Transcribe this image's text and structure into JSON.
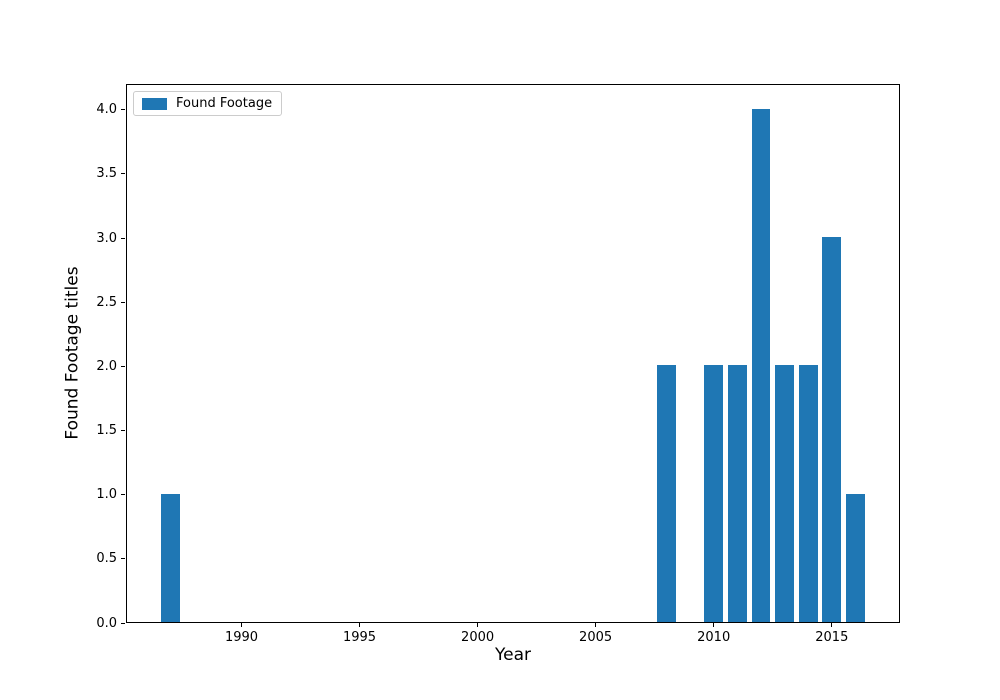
{
  "figure": {
    "background": "#ffffff"
  },
  "chart_data": {
    "type": "bar",
    "title": "",
    "xlabel": "Year",
    "ylabel": "Found Footage titles",
    "series": [
      {
        "name": "Found Footage",
        "color": "#1f77b4",
        "x": [
          1987,
          2008,
          2010,
          2011,
          2012,
          2013,
          2014,
          2015,
          2016
        ],
        "values": [
          1,
          2,
          2,
          2,
          4,
          2,
          2,
          3,
          1
        ]
      }
    ],
    "bar_width": 0.8,
    "xlim": [
      1985.11,
      2017.89
    ],
    "ylim": [
      0,
      4.2
    ],
    "x_ticks": [
      1990,
      1995,
      2000,
      2005,
      2010,
      2015
    ],
    "x_tick_labels": [
      "1990",
      "1995",
      "2000",
      "2005",
      "2010",
      "2015"
    ],
    "y_ticks": [
      0.0,
      0.5,
      1.0,
      1.5,
      2.0,
      2.5,
      3.0,
      3.5,
      4.0
    ],
    "y_tick_labels": [
      "0.0",
      "0.5",
      "1.0",
      "1.5",
      "2.0",
      "2.5",
      "3.0",
      "3.5",
      "4.0"
    ],
    "grid": false,
    "legend": {
      "position": "upper left",
      "entries": [
        {
          "label": "Found Footage",
          "color": "#1f77b4"
        }
      ]
    }
  }
}
